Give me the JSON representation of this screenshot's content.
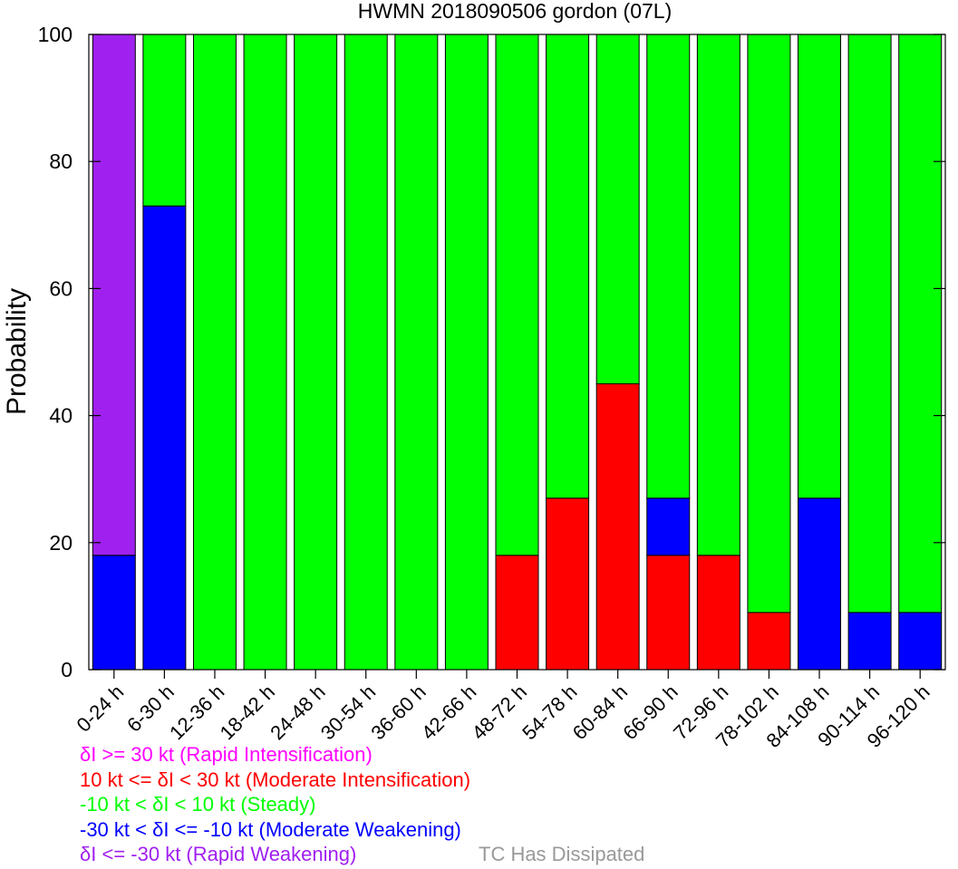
{
  "chart_data": {
    "type": "bar",
    "stacked": true,
    "title": "HWMN 2018090506 gordon (07L)",
    "xlabel": "",
    "ylabel": "Probability",
    "ylim": [
      0,
      100
    ],
    "yticks": [
      0,
      20,
      40,
      60,
      80,
      100
    ],
    "grid": false,
    "categories": [
      "0-24 h",
      "6-30 h",
      "12-36 h",
      "18-42 h",
      "24-48 h",
      "30-54 h",
      "36-60 h",
      "42-66 h",
      "48-72 h",
      "54-78 h",
      "60-84 h",
      "66-90 h",
      "72-96 h",
      "78-102 h",
      "84-108 h",
      "90-114 h",
      "96-120 h"
    ],
    "series": [
      {
        "key": "rapid_weakening",
        "color": "#a020f0",
        "values": [
          82,
          0,
          0,
          0,
          0,
          0,
          0,
          0,
          0,
          0,
          0,
          0,
          0,
          0,
          0,
          0,
          0
        ]
      },
      {
        "key": "moderate_weakening",
        "color": "#0000ff",
        "values": [
          18,
          73,
          0,
          0,
          0,
          0,
          0,
          0,
          0,
          0,
          0,
          9,
          0,
          0,
          27,
          9,
          9
        ]
      },
      {
        "key": "steady",
        "color": "#00ff00",
        "values": [
          0,
          27,
          100,
          100,
          100,
          100,
          100,
          100,
          82,
          73,
          55,
          73,
          82,
          91,
          73,
          91,
          91
        ]
      },
      {
        "key": "moderate_intensification",
        "color": "#ff0000",
        "values": [
          0,
          0,
          0,
          0,
          0,
          0,
          0,
          0,
          18,
          27,
          45,
          18,
          18,
          9,
          0,
          0,
          0
        ]
      },
      {
        "key": "rapid_intensification",
        "color": "#ff00ff",
        "values": [
          0,
          0,
          0,
          0,
          0,
          0,
          0,
          0,
          0,
          0,
          0,
          0,
          0,
          0,
          0,
          0,
          0
        ]
      }
    ],
    "stack_order": [
      "moderate_intensification",
      "moderate_weakening",
      "steady",
      "rapid_weakening",
      "rapid_intensification"
    ]
  },
  "legend": [
    {
      "text": "δI >= 30 kt (Rapid Intensification)",
      "color": "#ff00ff"
    },
    {
      "text": "10 kt <= δI < 30 kt (Moderate Intensification)",
      "color": "#ff0000"
    },
    {
      "text": "-10 kt < δI < 10 kt (Steady)",
      "color": "#00ff00"
    },
    {
      "text": "-30 kt < δI <= -10 kt (Moderate Weakening)",
      "color": "#0000ff"
    },
    {
      "text": "δI <= -30 kt (Rapid Weakening)",
      "color": "#a020f0"
    }
  ],
  "dissipated_note": {
    "text": "TC Has Dissipated",
    "color": "#999999"
  }
}
